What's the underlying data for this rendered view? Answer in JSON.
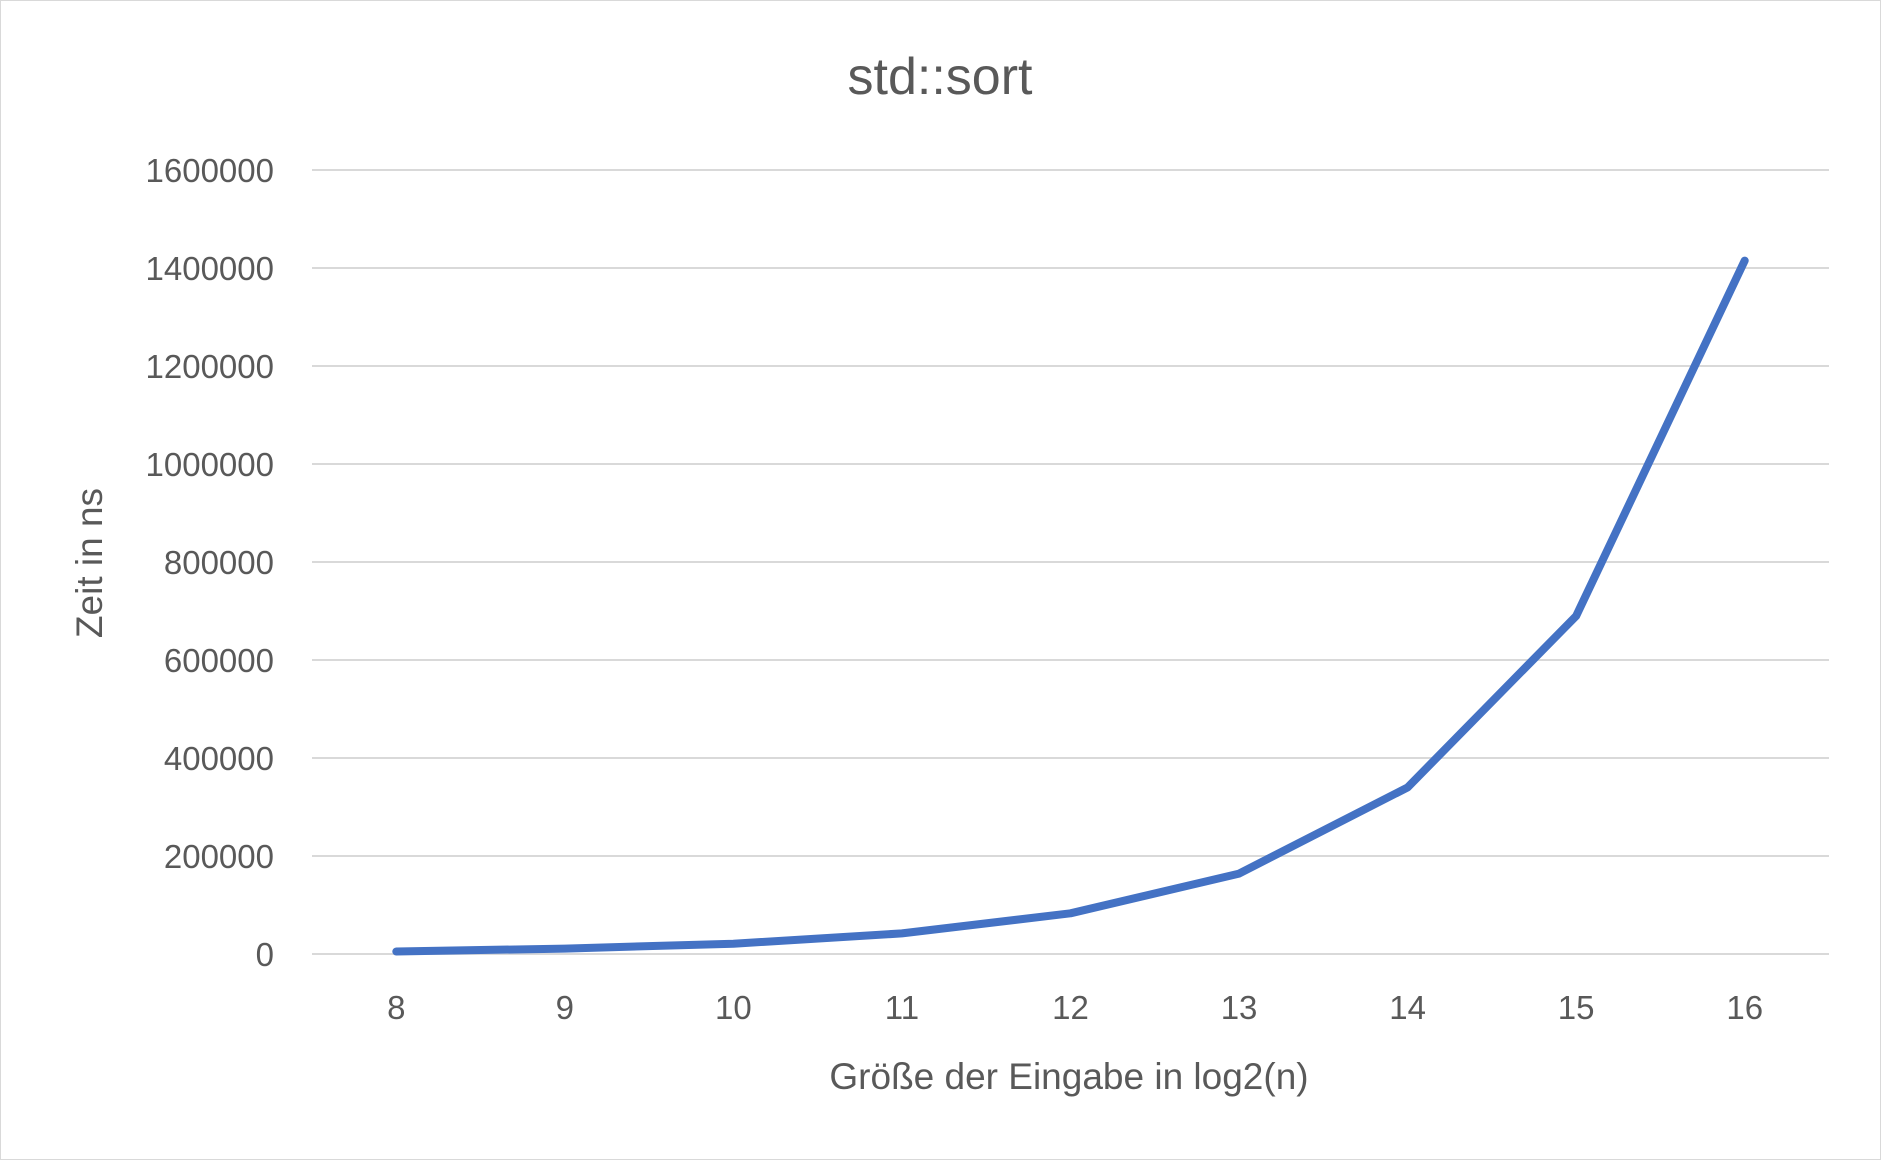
{
  "chart_data": {
    "type": "line",
    "title": "std::sort",
    "xlabel": "Größe der Eingabe in log2(n)",
    "ylabel": "Zeit in ns",
    "categories": [
      "8",
      "9",
      "10",
      "11",
      "12",
      "13",
      "14",
      "15",
      "16"
    ],
    "series": [
      {
        "values": [
          5000,
          11000,
          21000,
          42000,
          83000,
          164000,
          340000,
          690000,
          1415000
        ],
        "color": "#4472c4"
      }
    ],
    "yticks": [
      "0",
      "200000",
      "400000",
      "600000",
      "800000",
      "1000000",
      "1200000",
      "1400000",
      "1600000"
    ],
    "ylim": [
      0,
      1600000
    ],
    "grid": true,
    "legend": "none"
  }
}
